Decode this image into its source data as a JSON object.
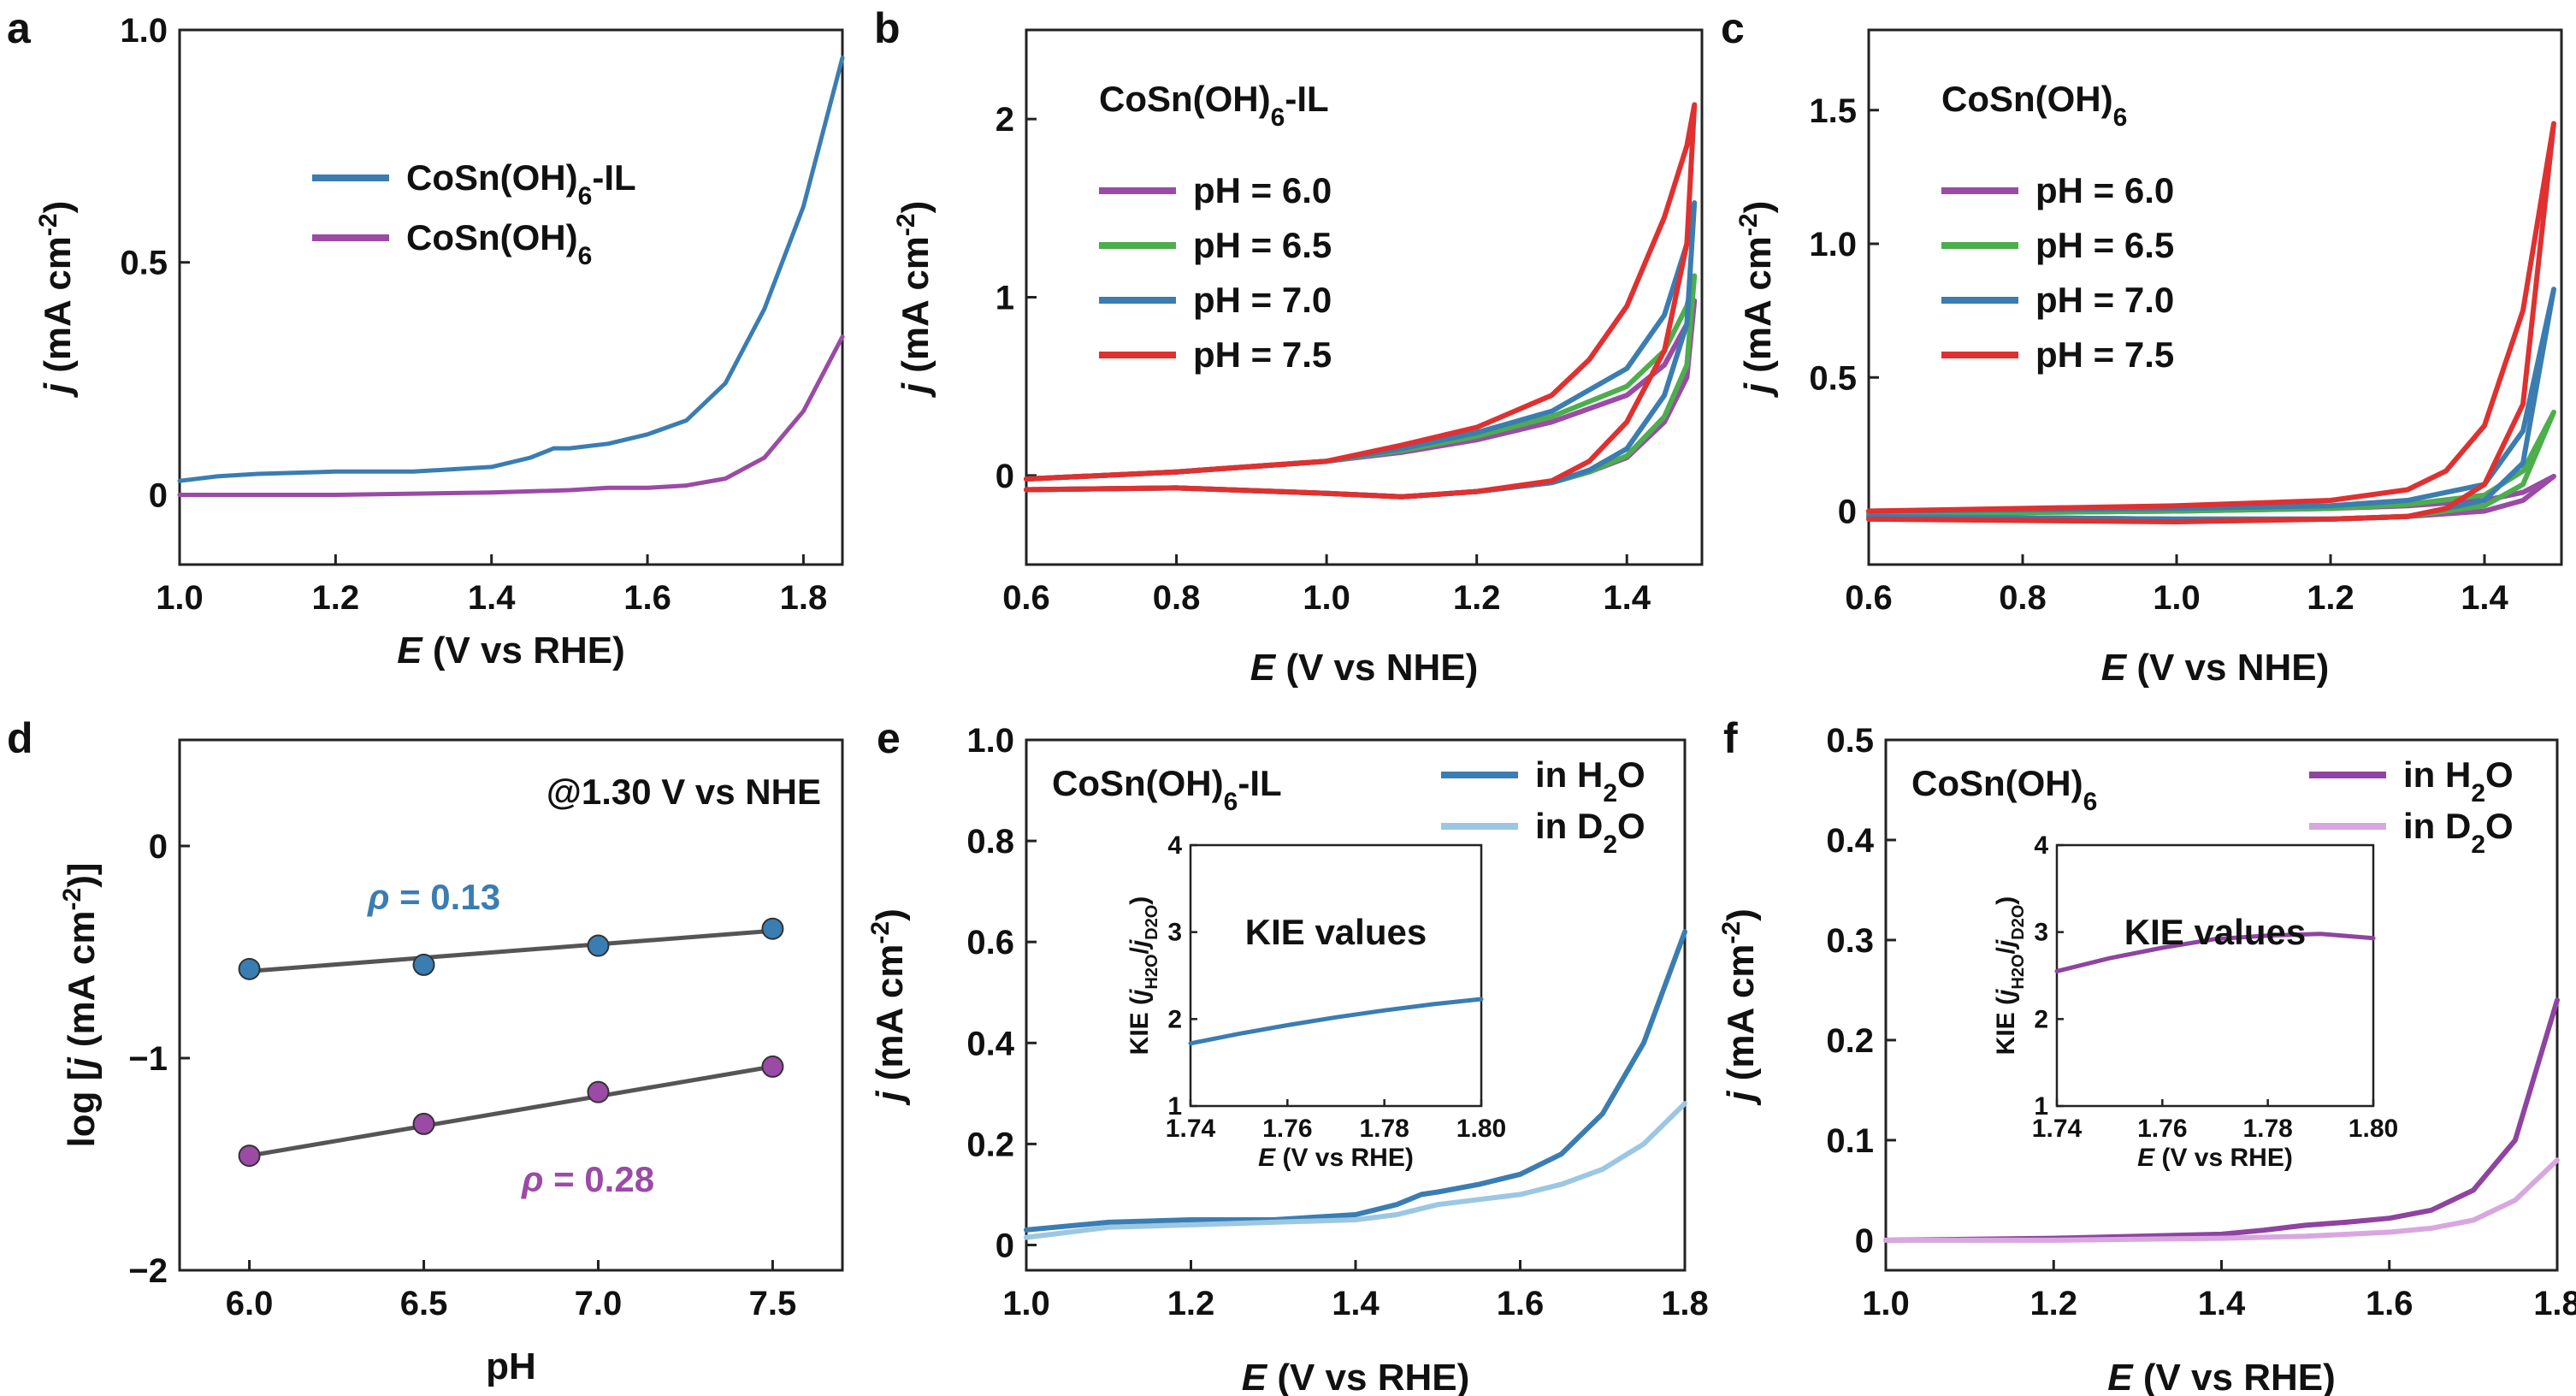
{
  "chart_data": [
    {
      "panel": "a",
      "type": "line",
      "xlabel_italic": "E",
      "xlabel_rest": " (V vs RHE)",
      "ylabel_italic": "j",
      "ylabel_rest": " (mA cm",
      "ylabel_sup": "-2",
      "ylabel_end": ")",
      "xlim": [
        1.0,
        1.85
      ],
      "ylim": [
        -0.15,
        1.0
      ],
      "xticks": [
        1.0,
        1.2,
        1.4,
        1.6,
        1.8
      ],
      "xtick_labels": [
        "1.0",
        "1.2",
        "1.4",
        "1.6",
        "1.8"
      ],
      "yticks": [
        0,
        0.5,
        1.0
      ],
      "ytick_labels": [
        "0",
        "0.5",
        "1.0"
      ],
      "legend_position": "upper-left",
      "series": [
        {
          "name": "CoSn(OH)6-IL",
          "label_main": "CoSn(OH)",
          "label_sub": "6",
          "label_tail": "-IL",
          "color": "#3a7db2",
          "x": [
            1.0,
            1.05,
            1.1,
            1.2,
            1.3,
            1.4,
            1.45,
            1.48,
            1.5,
            1.55,
            1.6,
            1.65,
            1.7,
            1.75,
            1.8,
            1.85
          ],
          "y": [
            0.03,
            0.04,
            0.045,
            0.05,
            0.05,
            0.06,
            0.08,
            0.1,
            0.1,
            0.11,
            0.13,
            0.16,
            0.24,
            0.4,
            0.62,
            0.94
          ]
        },
        {
          "name": "CoSn(OH)6",
          "label_main": "CoSn(OH)",
          "label_sub": "6",
          "label_tail": "",
          "color": "#9b4aa6",
          "x": [
            1.0,
            1.2,
            1.4,
            1.5,
            1.55,
            1.6,
            1.65,
            1.7,
            1.75,
            1.8,
            1.85
          ],
          "y": [
            0.0,
            0.0,
            0.005,
            0.01,
            0.015,
            0.015,
            0.02,
            0.035,
            0.08,
            0.18,
            0.34
          ]
        }
      ]
    },
    {
      "panel": "b",
      "type": "line",
      "title_main": "CoSn(OH)",
      "title_sub": "6",
      "title_tail": "-IL",
      "xlabel_italic": "E",
      "xlabel_rest": " (V vs NHE)",
      "ylabel_italic": "j",
      "ylabel_rest": " (mA cm",
      "ylabel_sup": "-2",
      "ylabel_end": ")",
      "xlim": [
        0.6,
        1.5
      ],
      "ylim": [
        -0.5,
        2.5
      ],
      "xticks": [
        0.6,
        0.8,
        1.0,
        1.2,
        1.4
      ],
      "xtick_labels": [
        "0.6",
        "0.8",
        "1.0",
        "1.2",
        "1.4"
      ],
      "yticks": [
        0,
        1,
        2
      ],
      "ytick_labels": [
        "0",
        "1",
        "2"
      ],
      "legend_position": "upper-left",
      "series": [
        {
          "name": "pH = 6.0",
          "color": "#9b4aa6",
          "x": [
            0.6,
            0.8,
            1.0,
            1.1,
            1.2,
            1.3,
            1.4,
            1.45,
            1.48,
            1.49,
            1.48,
            1.45,
            1.4,
            1.35,
            1.3,
            1.2,
            1.1,
            1.0,
            0.8,
            0.6
          ],
          "y": [
            -0.02,
            0.02,
            0.08,
            0.13,
            0.2,
            0.3,
            0.45,
            0.62,
            0.85,
            0.98,
            0.55,
            0.3,
            0.1,
            0.02,
            -0.04,
            -0.09,
            -0.12,
            -0.1,
            -0.07,
            -0.08
          ]
        },
        {
          "name": "pH = 6.5",
          "color": "#4cae4c",
          "x": [
            0.6,
            0.8,
            1.0,
            1.1,
            1.2,
            1.3,
            1.4,
            1.45,
            1.48,
            1.49,
            1.48,
            1.45,
            1.4,
            1.35,
            1.3,
            1.2,
            1.1,
            1.0,
            0.8,
            0.6
          ],
          "y": [
            -0.02,
            0.02,
            0.08,
            0.14,
            0.22,
            0.33,
            0.5,
            0.7,
            0.95,
            1.12,
            0.62,
            0.33,
            0.11,
            0.02,
            -0.04,
            -0.09,
            -0.12,
            -0.1,
            -0.07,
            -0.08
          ]
        },
        {
          "name": "pH = 7.0",
          "color": "#3a7db2",
          "x": [
            0.6,
            0.8,
            1.0,
            1.1,
            1.2,
            1.3,
            1.4,
            1.45,
            1.48,
            1.49,
            1.48,
            1.45,
            1.4,
            1.35,
            1.3,
            1.2,
            1.1,
            1.0,
            0.8,
            0.6
          ],
          "y": [
            -0.02,
            0.02,
            0.08,
            0.15,
            0.24,
            0.36,
            0.6,
            0.9,
            1.3,
            1.53,
            0.85,
            0.45,
            0.15,
            0.03,
            -0.04,
            -0.09,
            -0.12,
            -0.1,
            -0.07,
            -0.08
          ]
        },
        {
          "name": "pH = 7.5",
          "color": "#e03030",
          "x": [
            0.6,
            0.8,
            1.0,
            1.1,
            1.2,
            1.3,
            1.35,
            1.4,
            1.45,
            1.48,
            1.49,
            1.48,
            1.45,
            1.4,
            1.35,
            1.3,
            1.2,
            1.1,
            1.0,
            0.8,
            0.6
          ],
          "y": [
            -0.02,
            0.02,
            0.08,
            0.17,
            0.27,
            0.45,
            0.65,
            0.95,
            1.45,
            1.85,
            2.08,
            1.3,
            0.7,
            0.3,
            0.08,
            -0.03,
            -0.09,
            -0.12,
            -0.1,
            -0.07,
            -0.08
          ]
        }
      ]
    },
    {
      "panel": "c",
      "type": "line",
      "title_main": "CoSn(OH)",
      "title_sub": "6",
      "title_tail": "",
      "xlabel_italic": "E",
      "xlabel_rest": " (V vs NHE)",
      "ylabel_italic": "j",
      "ylabel_rest": " (mA cm",
      "ylabel_sup": "-2",
      "ylabel_end": ")",
      "xlim": [
        0.6,
        1.5
      ],
      "ylim": [
        -0.2,
        1.8
      ],
      "xticks": [
        0.6,
        0.8,
        1.0,
        1.2,
        1.4
      ],
      "xtick_labels": [
        "0.6",
        "0.8",
        "1.0",
        "1.2",
        "1.4"
      ],
      "yticks": [
        0,
        0.5,
        1.0,
        1.5
      ],
      "ytick_labels": [
        "0",
        "0.5",
        "1.0",
        "1.5"
      ],
      "legend_position": "upper-left",
      "series": [
        {
          "name": "pH = 6.0",
          "color": "#9b4aa6",
          "x": [
            0.6,
            1.0,
            1.2,
            1.3,
            1.4,
            1.45,
            1.49,
            1.45,
            1.4,
            1.3,
            1.2,
            1.0,
            0.6
          ],
          "y": [
            -0.01,
            0.0,
            0.01,
            0.02,
            0.04,
            0.07,
            0.13,
            0.04,
            0.0,
            -0.02,
            -0.03,
            -0.03,
            -0.02
          ]
        },
        {
          "name": "pH = 6.5",
          "color": "#4cae4c",
          "x": [
            0.6,
            1.0,
            1.2,
            1.3,
            1.4,
            1.45,
            1.49,
            1.45,
            1.4,
            1.3,
            1.2,
            1.0,
            0.6
          ],
          "y": [
            -0.01,
            0.0,
            0.01,
            0.025,
            0.06,
            0.15,
            0.37,
            0.1,
            0.02,
            -0.02,
            -0.03,
            -0.03,
            -0.02
          ]
        },
        {
          "name": "pH = 7.0",
          "color": "#3a7db2",
          "x": [
            0.6,
            1.0,
            1.2,
            1.3,
            1.4,
            1.45,
            1.49,
            1.45,
            1.4,
            1.3,
            1.2,
            1.0,
            0.6
          ],
          "y": [
            0.0,
            0.01,
            0.02,
            0.04,
            0.1,
            0.3,
            0.83,
            0.18,
            0.04,
            -0.02,
            -0.03,
            -0.03,
            -0.02
          ]
        },
        {
          "name": "pH = 7.5",
          "color": "#e03030",
          "x": [
            0.6,
            1.0,
            1.2,
            1.3,
            1.35,
            1.4,
            1.45,
            1.49,
            1.45,
            1.4,
            1.35,
            1.3,
            1.2,
            1.0,
            0.6
          ],
          "y": [
            0.0,
            0.02,
            0.04,
            0.08,
            0.15,
            0.32,
            0.75,
            1.45,
            0.4,
            0.1,
            0.01,
            -0.02,
            -0.03,
            -0.04,
            -0.03
          ]
        }
      ]
    },
    {
      "panel": "d",
      "type": "scatter",
      "note": "@1.30 V vs NHE",
      "xlabel": "pH",
      "ylabel_pre": "log [",
      "ylabel_italic": "j",
      "ylabel_rest": " (mA cm",
      "ylabel_sup": "-2",
      "ylabel_end": ")]",
      "xlim": [
        5.8,
        7.7
      ],
      "ylim": [
        -2.0,
        0.5
      ],
      "xticks": [
        6.0,
        6.5,
        7.0,
        7.5
      ],
      "xtick_labels": [
        "6.0",
        "6.5",
        "7.0",
        "7.5"
      ],
      "yticks": [
        0,
        -1,
        -2
      ],
      "ytick_labels": [
        "0",
        "−1",
        "−2"
      ],
      "series": [
        {
          "name": "CoSn(OH)6-IL",
          "color": "#3a7db2",
          "x": [
            6.0,
            6.5,
            7.0,
            7.5
          ],
          "y": [
            -0.58,
            -0.56,
            -0.47,
            -0.39
          ],
          "fit_x": [
            6.0,
            7.5
          ],
          "fit_y": [
            -0.59,
            -0.4
          ],
          "rho_value": "ρ = 0.13"
        },
        {
          "name": "CoSn(OH)6",
          "color": "#9b4aa6",
          "x": [
            6.0,
            6.5,
            7.0,
            7.5
          ],
          "y": [
            -1.46,
            -1.31,
            -1.16,
            -1.04
          ],
          "fit_x": [
            6.0,
            7.5
          ],
          "fit_y": [
            -1.46,
            -1.04
          ],
          "rho_value": "ρ = 0.28"
        }
      ]
    },
    {
      "panel": "e",
      "type": "line",
      "title_main": "CoSn(OH)",
      "title_sub": "6",
      "title_tail": "-IL",
      "xlabel_italic": "E",
      "xlabel_rest": " (V vs RHE)",
      "ylabel_italic": "j",
      "ylabel_rest": " (mA cm",
      "ylabel_sup": "-2",
      "ylabel_end": ")",
      "xlim": [
        1.0,
        1.8
      ],
      "ylim": [
        -0.05,
        1.0
      ],
      "xticks": [
        1.0,
        1.2,
        1.4,
        1.6,
        1.8
      ],
      "xtick_labels": [
        "1.0",
        "1.2",
        "1.4",
        "1.6",
        "1.8"
      ],
      "yticks": [
        0,
        0.2,
        0.4,
        0.6,
        0.8,
        1.0
      ],
      "ytick_labels": [
        "0",
        "0.2",
        "0.4",
        "0.6",
        "0.8",
        "1.0"
      ],
      "legend_position": "upper-right",
      "series": [
        {
          "name": "in H2O",
          "label_main": "in H",
          "label_sub": "2",
          "label_tail": "O",
          "color": "#3a7db2",
          "x": [
            1.0,
            1.1,
            1.2,
            1.3,
            1.4,
            1.45,
            1.48,
            1.5,
            1.55,
            1.6,
            1.65,
            1.7,
            1.75,
            1.8
          ],
          "y": [
            0.03,
            0.045,
            0.05,
            0.05,
            0.06,
            0.08,
            0.1,
            0.105,
            0.12,
            0.14,
            0.18,
            0.26,
            0.4,
            0.62
          ]
        },
        {
          "name": "in D2O",
          "label_main": "in D",
          "label_sub": "2",
          "label_tail": "O",
          "color": "#9cc7e3",
          "x": [
            1.0,
            1.1,
            1.2,
            1.3,
            1.4,
            1.45,
            1.5,
            1.55,
            1.6,
            1.65,
            1.7,
            1.75,
            1.8
          ],
          "y": [
            0.015,
            0.035,
            0.04,
            0.045,
            0.05,
            0.06,
            0.08,
            0.09,
            0.1,
            0.12,
            0.15,
            0.2,
            0.28
          ]
        }
      ],
      "inset": {
        "label": "KIE values",
        "ylabel_pre": "KIE (",
        "ylabel_j": "j",
        "ylabel_sub1": "H2O",
        "ylabel_slash": "/",
        "ylabel_sub2": "D2O",
        "ylabel_end": ")",
        "xlabel_italic": "E",
        "xlabel_rest": " (V vs RHE)",
        "xlim": [
          1.74,
          1.8
        ],
        "ylim": [
          1,
          4
        ],
        "xticks": [
          1.74,
          1.76,
          1.78,
          1.8
        ],
        "xtick_labels": [
          "1.74",
          "1.76",
          "1.78",
          "1.80"
        ],
        "yticks": [
          1,
          2,
          3,
          4
        ],
        "ytick_labels": [
          "1",
          "2",
          "3",
          "4"
        ],
        "color": "#3a7db2",
        "x": [
          1.74,
          1.75,
          1.76,
          1.77,
          1.78,
          1.79,
          1.8
        ],
        "y": [
          1.72,
          1.83,
          1.93,
          2.02,
          2.1,
          2.17,
          2.23
        ]
      }
    },
    {
      "panel": "f",
      "type": "line",
      "title_main": "CoSn(OH)",
      "title_sub": "6",
      "title_tail": "",
      "xlabel_italic": "E",
      "xlabel_rest": " (V vs RHE)",
      "ylabel_italic": "j",
      "ylabel_rest": " (mA cm",
      "ylabel_sup": "-2",
      "ylabel_end": ")",
      "xlim": [
        1.0,
        1.8
      ],
      "ylim": [
        -0.03,
        0.5
      ],
      "xticks": [
        1.0,
        1.2,
        1.4,
        1.6,
        1.8
      ],
      "xtick_labels": [
        "1.0",
        "1.2",
        "1.4",
        "1.6",
        "1.8"
      ],
      "yticks": [
        0,
        0.1,
        0.2,
        0.3,
        0.4,
        0.5
      ],
      "ytick_labels": [
        "0",
        "0.1",
        "0.2",
        "0.3",
        "0.4",
        "0.5"
      ],
      "legend_position": "upper-right",
      "series": [
        {
          "name": "in H2O",
          "label_main": "in H",
          "label_sub": "2",
          "label_tail": "O",
          "color": "#8e44a0",
          "x": [
            1.0,
            1.2,
            1.4,
            1.45,
            1.5,
            1.55,
            1.6,
            1.65,
            1.7,
            1.75,
            1.8
          ],
          "y": [
            0.0,
            0.002,
            0.006,
            0.01,
            0.015,
            0.018,
            0.022,
            0.03,
            0.05,
            0.1,
            0.24
          ]
        },
        {
          "name": "in D2O",
          "label_main": "in D",
          "label_sub": "2",
          "label_tail": "O",
          "color": "#d9a7e0",
          "x": [
            1.0,
            1.2,
            1.4,
            1.5,
            1.6,
            1.65,
            1.7,
            1.75,
            1.8
          ],
          "y": [
            0.0,
            0.0,
            0.002,
            0.004,
            0.008,
            0.012,
            0.02,
            0.04,
            0.08
          ]
        }
      ],
      "inset": {
        "label": "KIE values",
        "ylabel_pre": "KIE (",
        "ylabel_j": "j",
        "ylabel_sub1": "H2O",
        "ylabel_slash": "/",
        "ylabel_sub2": "D2O",
        "ylabel_end": ")",
        "xlabel_italic": "E",
        "xlabel_rest": " (V vs RHE)",
        "xlim": [
          1.74,
          1.8
        ],
        "ylim": [
          1,
          4
        ],
        "xticks": [
          1.74,
          1.76,
          1.78,
          1.8
        ],
        "xtick_labels": [
          "1.74",
          "1.76",
          "1.78",
          "1.80"
        ],
        "yticks": [
          1,
          2,
          3,
          4
        ],
        "ytick_labels": [
          "1",
          "2",
          "3",
          "4"
        ],
        "color": "#8e44a0",
        "x": [
          1.74,
          1.75,
          1.76,
          1.77,
          1.78,
          1.79,
          1.8
        ],
        "y": [
          2.55,
          2.7,
          2.82,
          2.92,
          2.96,
          2.98,
          2.93
        ]
      }
    }
  ]
}
